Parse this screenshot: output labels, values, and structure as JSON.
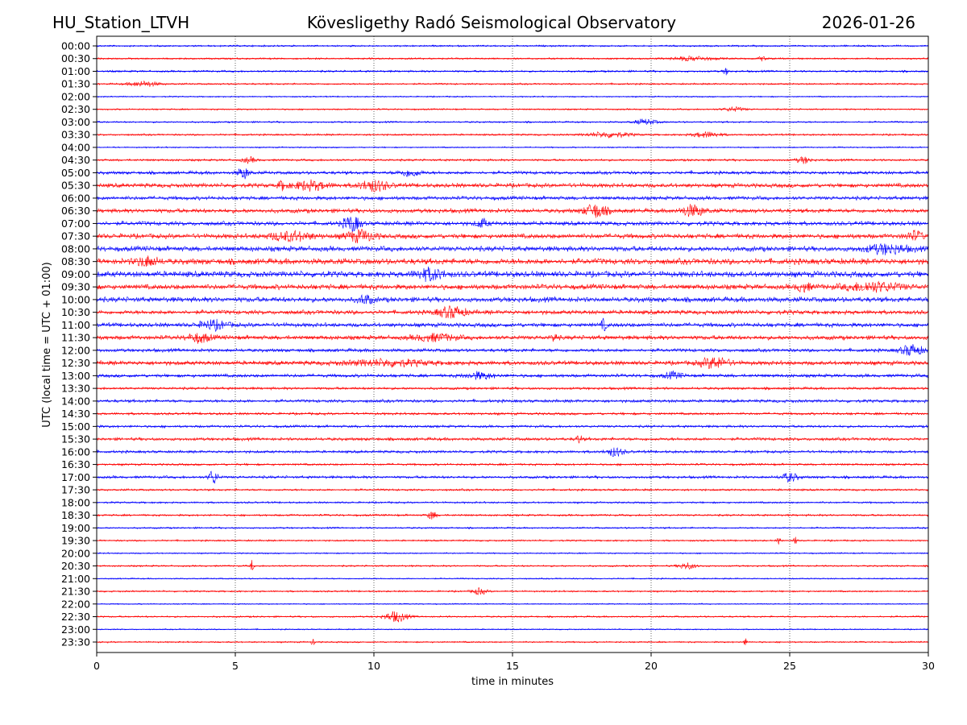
{
  "chart_data": {
    "type": "line",
    "subtype": "helicorder",
    "title_left": "HU_Station_LTVH",
    "title_center": "Kövesligethy Radó Seismological Observatory",
    "title_right": "2026-01-26",
    "xlabel": "time in minutes",
    "ylabel": "UTC (local time = UTC + 01:00)",
    "xlim": [
      0,
      30
    ],
    "xticks": [
      "0",
      "5",
      "10",
      "15",
      "20",
      "25",
      "30"
    ],
    "grid": "vertical dotted at 5-minute ticks",
    "colors": {
      "even_rows": "#0000ff",
      "odd_rows": "#ff0000"
    },
    "rows": [
      "00:00",
      "00:30",
      "01:00",
      "01:30",
      "02:00",
      "02:30",
      "03:00",
      "03:30",
      "04:00",
      "04:30",
      "05:00",
      "05:30",
      "06:00",
      "06:30",
      "07:00",
      "07:30",
      "08:00",
      "08:30",
      "09:00",
      "09:30",
      "10:00",
      "10:30",
      "11:00",
      "11:30",
      "12:00",
      "12:30",
      "13:00",
      "13:30",
      "14:00",
      "14:30",
      "15:00",
      "15:30",
      "16:00",
      "16:30",
      "17:00",
      "17:30",
      "18:00",
      "18:30",
      "19:00",
      "19:30",
      "20:00",
      "20:30",
      "21:00",
      "21:30",
      "22:00",
      "22:30",
      "23:00",
      "23:30"
    ],
    "noise_level": [
      1,
      1,
      1.2,
      1,
      0.8,
      0.9,
      1,
      1.1,
      0.8,
      1.3,
      2,
      2.5,
      2.2,
      2.5,
      2.5,
      2.8,
      3,
      3.5,
      3.5,
      3,
      3,
      2.5,
      2.5,
      2.5,
      2,
      2.5,
      2,
      1.5,
      1.8,
      1.5,
      1.5,
      1.8,
      1.6,
      1.3,
      1.6,
      1.2,
      1.1,
      1.2,
      1,
      1,
      0.8,
      1,
      0.8,
      1,
      0.7,
      1,
      0.7,
      0.9
    ],
    "events": [
      [
        1,
        21.5,
        1.5,
        2
      ],
      [
        1,
        24,
        0.3,
        2
      ],
      [
        2,
        22.7,
        0.2,
        3
      ],
      [
        3,
        1.7,
        1,
        2.5
      ],
      [
        5,
        23,
        0.8,
        2
      ],
      [
        6,
        19.8,
        0.8,
        2.5
      ],
      [
        7,
        18.5,
        1.5,
        2.5
      ],
      [
        7,
        22,
        1,
        2.5
      ],
      [
        9,
        5.5,
        0.5,
        2.5
      ],
      [
        9,
        25.5,
        0.5,
        3
      ],
      [
        10,
        5.3,
        0.4,
        5
      ],
      [
        10,
        11.3,
        0.8,
        3
      ],
      [
        11,
        7.7,
        1.2,
        4
      ],
      [
        11,
        10,
        1,
        5
      ],
      [
        11,
        6.7,
        0.3,
        4
      ],
      [
        13,
        18,
        0.8,
        6
      ],
      [
        13,
        21.5,
        0.8,
        5
      ],
      [
        14,
        9.2,
        0.6,
        7
      ],
      [
        14,
        13.9,
        0.4,
        4
      ],
      [
        15,
        7,
        1.5,
        4
      ],
      [
        15,
        9.5,
        1,
        5
      ],
      [
        15,
        29.5,
        0.6,
        4
      ],
      [
        16,
        28.5,
        1.5,
        4
      ],
      [
        17,
        1.8,
        0.8,
        4
      ],
      [
        18,
        12,
        1,
        5
      ],
      [
        19,
        28,
        2,
        4
      ],
      [
        19,
        25.5,
        0.5,
        4
      ],
      [
        20,
        9.7,
        0.5,
        4
      ],
      [
        21,
        12.8,
        1,
        5
      ],
      [
        22,
        4.2,
        1,
        4
      ],
      [
        22,
        18.3,
        0.2,
        5
      ],
      [
        23,
        3.7,
        0.8,
        4
      ],
      [
        23,
        12.2,
        1.5,
        3
      ],
      [
        23,
        16.5,
        0.2,
        4
      ],
      [
        24,
        29.4,
        0.8,
        5
      ],
      [
        25,
        22.3,
        1,
        5
      ],
      [
        25,
        10.5,
        3,
        2.5
      ],
      [
        26,
        13.8,
        1,
        3
      ],
      [
        26,
        20.8,
        0.6,
        3
      ],
      [
        31,
        17.4,
        0.2,
        4
      ],
      [
        32,
        18.7,
        0.6,
        4
      ],
      [
        34,
        4.2,
        0.3,
        7
      ],
      [
        34,
        25,
        0.6,
        4
      ],
      [
        37,
        12.1,
        0.3,
        4
      ],
      [
        39,
        24.6,
        0.1,
        4
      ],
      [
        39,
        25.2,
        0.1,
        4
      ],
      [
        41,
        5.6,
        0.1,
        6
      ],
      [
        41,
        21.3,
        0.6,
        3
      ],
      [
        43,
        13.8,
        0.5,
        3
      ],
      [
        45,
        10.8,
        0.8,
        5
      ],
      [
        47,
        7.8,
        0.1,
        5
      ],
      [
        47,
        23.4,
        0.1,
        4
      ]
    ]
  }
}
